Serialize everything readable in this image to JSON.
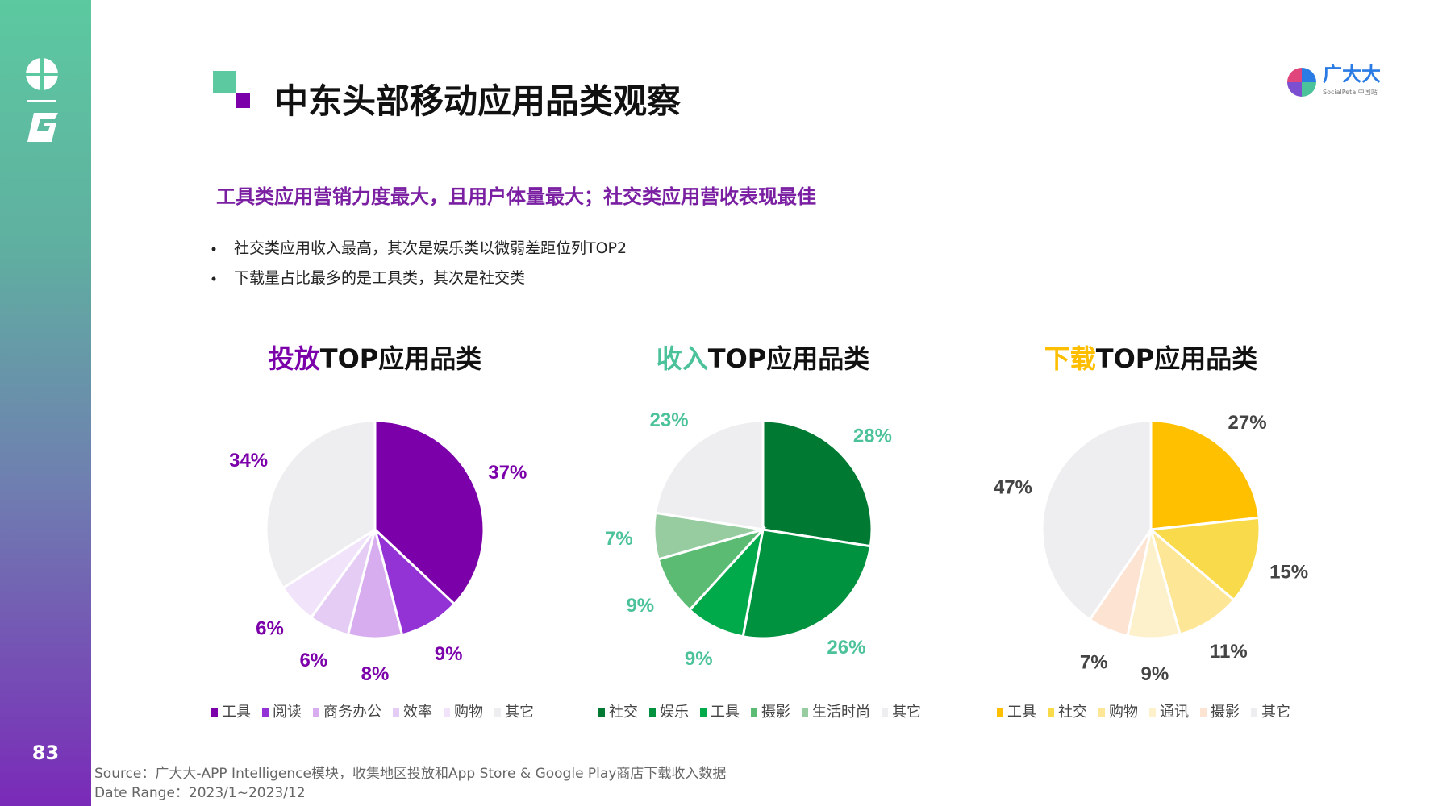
{
  "page_number": "83",
  "title": "中东头部移动应用品类观察",
  "subtitle": "工具类应用营销力度最大，且用户体量最大；社交类应用营收表现最佳",
  "bullets": [
    "社交类应用收入最高，其次是娱乐类以微弱差距位列TOP2",
    "下载量占比最多的是工具类，其次是社交类"
  ],
  "logo": {
    "name": "广大大",
    "sub": "SocialPeta 中国站"
  },
  "source": "Source：广大大-APP Intelligence模块，收集地区投放和App Store & Google Play商店下载收入数据",
  "date_range": "Date Range：2023/1~2023/12",
  "chart_data": [
    {
      "type": "pie",
      "title_accent": "投放",
      "title_rest": "TOP应用品类",
      "accent_color": "#7b00aa",
      "label_color": "#7b00aa",
      "categories": [
        "工具",
        "阅读",
        "商务办公",
        "效率",
        "购物",
        "其它"
      ],
      "values": [
        37,
        9,
        8,
        6,
        6,
        34
      ],
      "labels": [
        "37%",
        "9%",
        "8%",
        "6%",
        "6%",
        "34%"
      ],
      "colors": [
        "#7b00aa",
        "#9333d6",
        "#d8adf0",
        "#e5ccf5",
        "#f1e4fa",
        "#eeeef0"
      ]
    },
    {
      "type": "pie",
      "title_accent": "收入",
      "title_rest": "TOP应用品类",
      "accent_color": "#4cc29a",
      "label_color": "#4cc29a",
      "categories": [
        "社交",
        "娱乐",
        "工具",
        "摄影",
        "生活时尚",
        "其它"
      ],
      "values": [
        28,
        26,
        9,
        9,
        7,
        23
      ],
      "labels": [
        "28%",
        "26%",
        "9%",
        "9%",
        "7%",
        "23%"
      ],
      "colors": [
        "#007a33",
        "#00923f",
        "#00a94a",
        "#5bbb73",
        "#96cc9f",
        "#eeeef0"
      ]
    },
    {
      "type": "pie",
      "title_accent": "下载",
      "title_rest": "TOP应用品类",
      "accent_color": "#ffbf00",
      "label_color": "#444444",
      "categories": [
        "工具",
        "社交",
        "购物",
        "通讯",
        "摄影",
        "其它"
      ],
      "values": [
        27,
        15,
        11,
        9,
        7,
        47
      ],
      "labels": [
        "27%",
        "15%",
        "11%",
        "9%",
        "7%",
        "47%"
      ],
      "colors": [
        "#ffc000",
        "#f9da4a",
        "#fde696",
        "#fdf1cc",
        "#fde3d2",
        "#eeeef0"
      ]
    }
  ]
}
